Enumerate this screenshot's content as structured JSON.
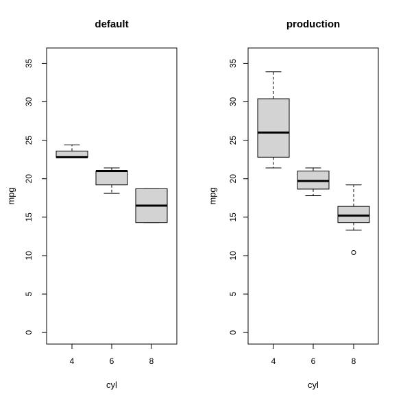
{
  "chart_data": [
    {
      "type": "boxplot",
      "title": "default",
      "xlabel": "cyl",
      "ylabel": "mpg",
      "ylim": [
        -1.5,
        37
      ],
      "yticks": [
        "0",
        "5",
        "10",
        "15",
        "20",
        "25",
        "30",
        "35"
      ],
      "categories": [
        "4",
        "6",
        "8"
      ],
      "boxes": [
        {
          "category": "4",
          "whisker_low": 22.8,
          "q1": 22.8,
          "median": 22.8,
          "q3": 23.6,
          "whisker_high": 24.4,
          "outliers": []
        },
        {
          "category": "6",
          "whisker_low": 18.1,
          "q1": 19.2,
          "median": 21.0,
          "q3": 21.0,
          "whisker_high": 21.4,
          "outliers": []
        },
        {
          "category": "8",
          "whisker_low": 14.3,
          "q1": 14.3,
          "median": 16.5,
          "q3": 18.7,
          "whisker_high": 18.7,
          "outliers": []
        }
      ],
      "box_color": "#d3d3d3"
    },
    {
      "type": "boxplot",
      "title": "production",
      "xlabel": "cyl",
      "ylabel": "mpg",
      "ylim": [
        -1.5,
        37
      ],
      "yticks": [
        "0",
        "5",
        "10",
        "15",
        "20",
        "25",
        "30",
        "35"
      ],
      "categories": [
        "4",
        "6",
        "8"
      ],
      "boxes": [
        {
          "category": "4",
          "whisker_low": 21.4,
          "q1": 22.8,
          "median": 26.0,
          "q3": 30.4,
          "whisker_high": 33.9,
          "outliers": []
        },
        {
          "category": "6",
          "whisker_low": 17.8,
          "q1": 18.65,
          "median": 19.7,
          "q3": 21.0,
          "whisker_high": 21.4,
          "outliers": []
        },
        {
          "category": "8",
          "whisker_low": 13.3,
          "q1": 14.3,
          "median": 15.2,
          "q3": 16.4,
          "whisker_high": 19.2,
          "outliers": [
            10.4
          ]
        }
      ],
      "box_color": "#d3d3d3"
    }
  ]
}
